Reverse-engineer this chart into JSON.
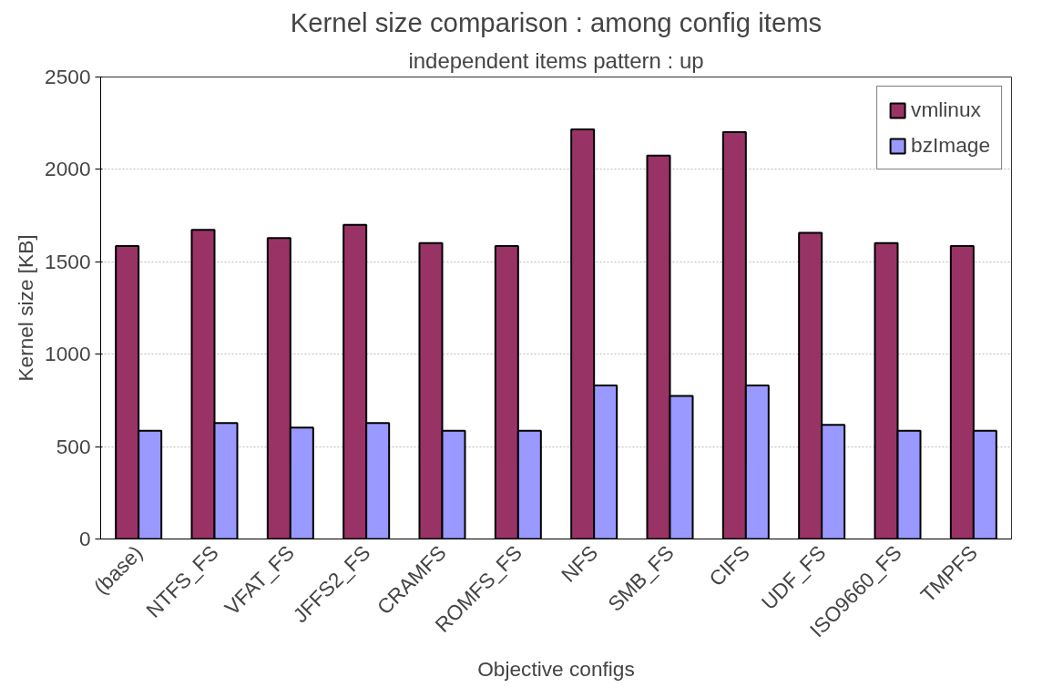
{
  "chart_data": {
    "type": "bar",
    "title": "Kernel size comparison : among config items",
    "xlabel": "Objective configs",
    "ylabel": "Kernel size [KB]",
    "annotations": [
      "independent items pattern : up"
    ],
    "categories": [
      "(base)",
      "NTFS_FS",
      "VFAT_FS",
      "JFFS2_FS",
      "CRAMFS",
      "ROMFS_FS",
      "NFS",
      "SMB_FS",
      "CIFS",
      "UDF_FS",
      "ISO9660_FS",
      "TMPFS"
    ],
    "series": [
      {
        "name": "vmlinux",
        "color": "#993366",
        "values": [
          1585,
          1673,
          1629,
          1700,
          1601,
          1585,
          2216,
          2075,
          2202,
          1657,
          1601,
          1585
        ]
      },
      {
        "name": "bzImage",
        "color": "#9999ff",
        "values": [
          585,
          627,
          603,
          627,
          585,
          585,
          831,
          774,
          831,
          617,
          585,
          585
        ]
      }
    ],
    "ylim": [
      0,
      2500
    ],
    "yticks": [
      0,
      500,
      1000,
      1500,
      2000,
      2500
    ],
    "grid": "y",
    "legend": "top right"
  }
}
